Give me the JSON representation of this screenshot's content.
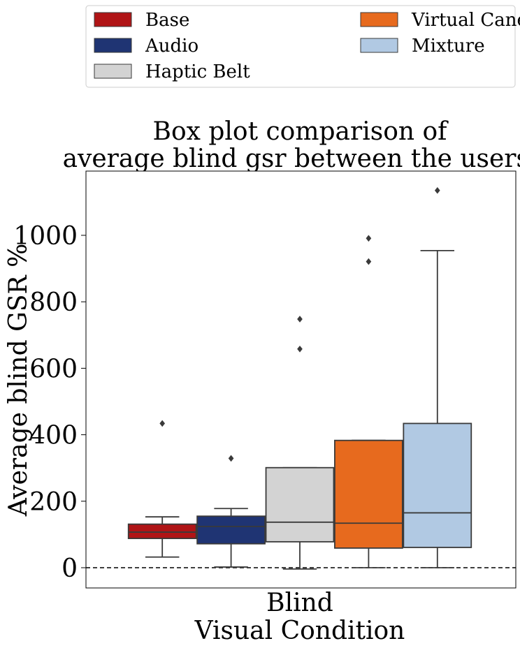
{
  "chart_data": {
    "type": "box",
    "title": [
      "Box plot comparison of",
      "average blind gsr between the users."
    ],
    "xlabel": "Visual Condition",
    "ylabel": "Average blind GSR %",
    "categories": [
      "Blind"
    ],
    "ylim": [
      -60,
      1180
    ],
    "yticks": [
      0,
      200,
      400,
      600,
      800,
      1000
    ],
    "reference_line": {
      "y": 0,
      "style": "dashed"
    },
    "legend": {
      "placement": "top",
      "columns": 2
    },
    "series": [
      {
        "name": "Base",
        "color": "#b01416",
        "whisker_low": 32,
        "q1": 88,
        "median": 107,
        "q3": 131,
        "whisker_high": 153,
        "outliers": [
          434
        ]
      },
      {
        "name": "Audio",
        "color": "#1f3473",
        "whisker_low": 2,
        "q1": 72,
        "median": 124,
        "q3": 155,
        "whisker_high": 178,
        "outliers": [
          329
        ]
      },
      {
        "name": "Haptic Belt",
        "color": "#d3d3d3",
        "whisker_low": -4,
        "q1": 78,
        "median": 137,
        "q3": 301,
        "whisker_high": 301,
        "outliers": [
          658,
          748
        ]
      },
      {
        "name": "Virtual Cane",
        "color": "#e76a1e",
        "whisker_low": 0,
        "q1": 59,
        "median": 134,
        "q3": 383,
        "whisker_high": 383,
        "outliers": [
          921,
          991
        ]
      },
      {
        "name": "Mixture",
        "color": "#b1c9e3",
        "whisker_low": 0,
        "q1": 61,
        "median": 165,
        "q3": 434,
        "whisker_high": 954,
        "outliers": [
          1135
        ]
      }
    ]
  }
}
